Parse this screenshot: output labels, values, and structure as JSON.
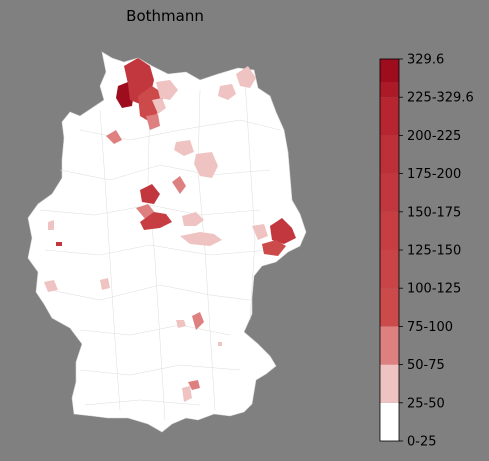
{
  "title": "Bothmann",
  "legend": {
    "bins": [
      {
        "label": "0-25",
        "color": "#ffffff"
      },
      {
        "label": "25-50",
        "color": "#f0c3c3"
      },
      {
        "label": "50-75",
        "color": "#de8080"
      },
      {
        "label": "75-100",
        "color": "#cc4a4a"
      },
      {
        "label": "100-125",
        "color": "#c94446"
      },
      {
        "label": "125-150",
        "color": "#c63e42"
      },
      {
        "label": "150-175",
        "color": "#c2373d"
      },
      {
        "label": "175-200",
        "color": "#bd3037"
      },
      {
        "label": "200-225",
        "color": "#b72630"
      },
      {
        "label": "225-329.6",
        "color": "#ac1a27"
      },
      {
        "label": "329.6",
        "color": "#9e0d1d"
      }
    ],
    "max_label": "329.6"
  },
  "colors": {
    "background": "#808080",
    "land": "#ffffff",
    "border": "#cfcfcf"
  }
}
